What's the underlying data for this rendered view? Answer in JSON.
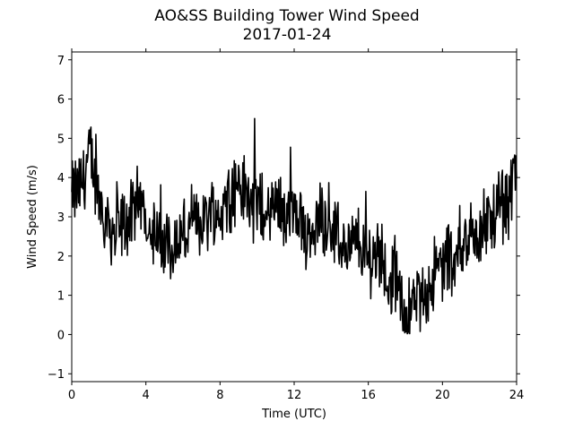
{
  "chart_data": {
    "type": "line",
    "title": "AO&SS Building Tower Wind Speed",
    "subtitle": "2017-01-24",
    "xlabel": "Time (UTC)",
    "ylabel": "Wind Speed (m/s)",
    "xlim": [
      0,
      24
    ],
    "ylim": [
      -1.2,
      7.2
    ],
    "xticks": [
      0,
      4,
      8,
      12,
      16,
      20,
      24
    ],
    "yticks": [
      -1,
      0,
      1,
      2,
      3,
      4,
      5,
      6,
      7
    ],
    "grid": false,
    "legend": "none",
    "series": [
      {
        "color": "#000000",
        "x": [
          0,
          0.5,
          1.0,
          1.5,
          2.0,
          2.5,
          3.0,
          3.5,
          4.0,
          4.5,
          5.0,
          5.5,
          6.0,
          6.5,
          7.0,
          7.5,
          8.0,
          8.5,
          9.0,
          9.5,
          10.0,
          10.5,
          11.0,
          11.5,
          12.0,
          12.5,
          13.0,
          13.5,
          14.0,
          14.5,
          15.0,
          15.5,
          16.0,
          16.5,
          17.0,
          17.5,
          18.0,
          18.5,
          19.0,
          19.5,
          20.0,
          20.5,
          21.0,
          21.5,
          22.0,
          22.5,
          23.0,
          23.5,
          24.0
        ],
        "y": [
          3.5,
          3.8,
          4.6,
          3.4,
          2.8,
          2.6,
          2.9,
          3.1,
          3.2,
          2.4,
          2.2,
          2.3,
          2.5,
          2.7,
          2.9,
          3.1,
          3.1,
          3.6,
          3.8,
          3.5,
          3.3,
          2.9,
          3.4,
          3.1,
          3.0,
          2.6,
          2.7,
          3.1,
          2.9,
          2.3,
          2.2,
          2.4,
          1.8,
          2.1,
          1.5,
          1.3,
          0.5,
          0.7,
          1.0,
          1.5,
          1.8,
          2.0,
          2.3,
          2.5,
          2.6,
          2.9,
          3.1,
          3.4,
          4.0
        ]
      }
    ]
  }
}
